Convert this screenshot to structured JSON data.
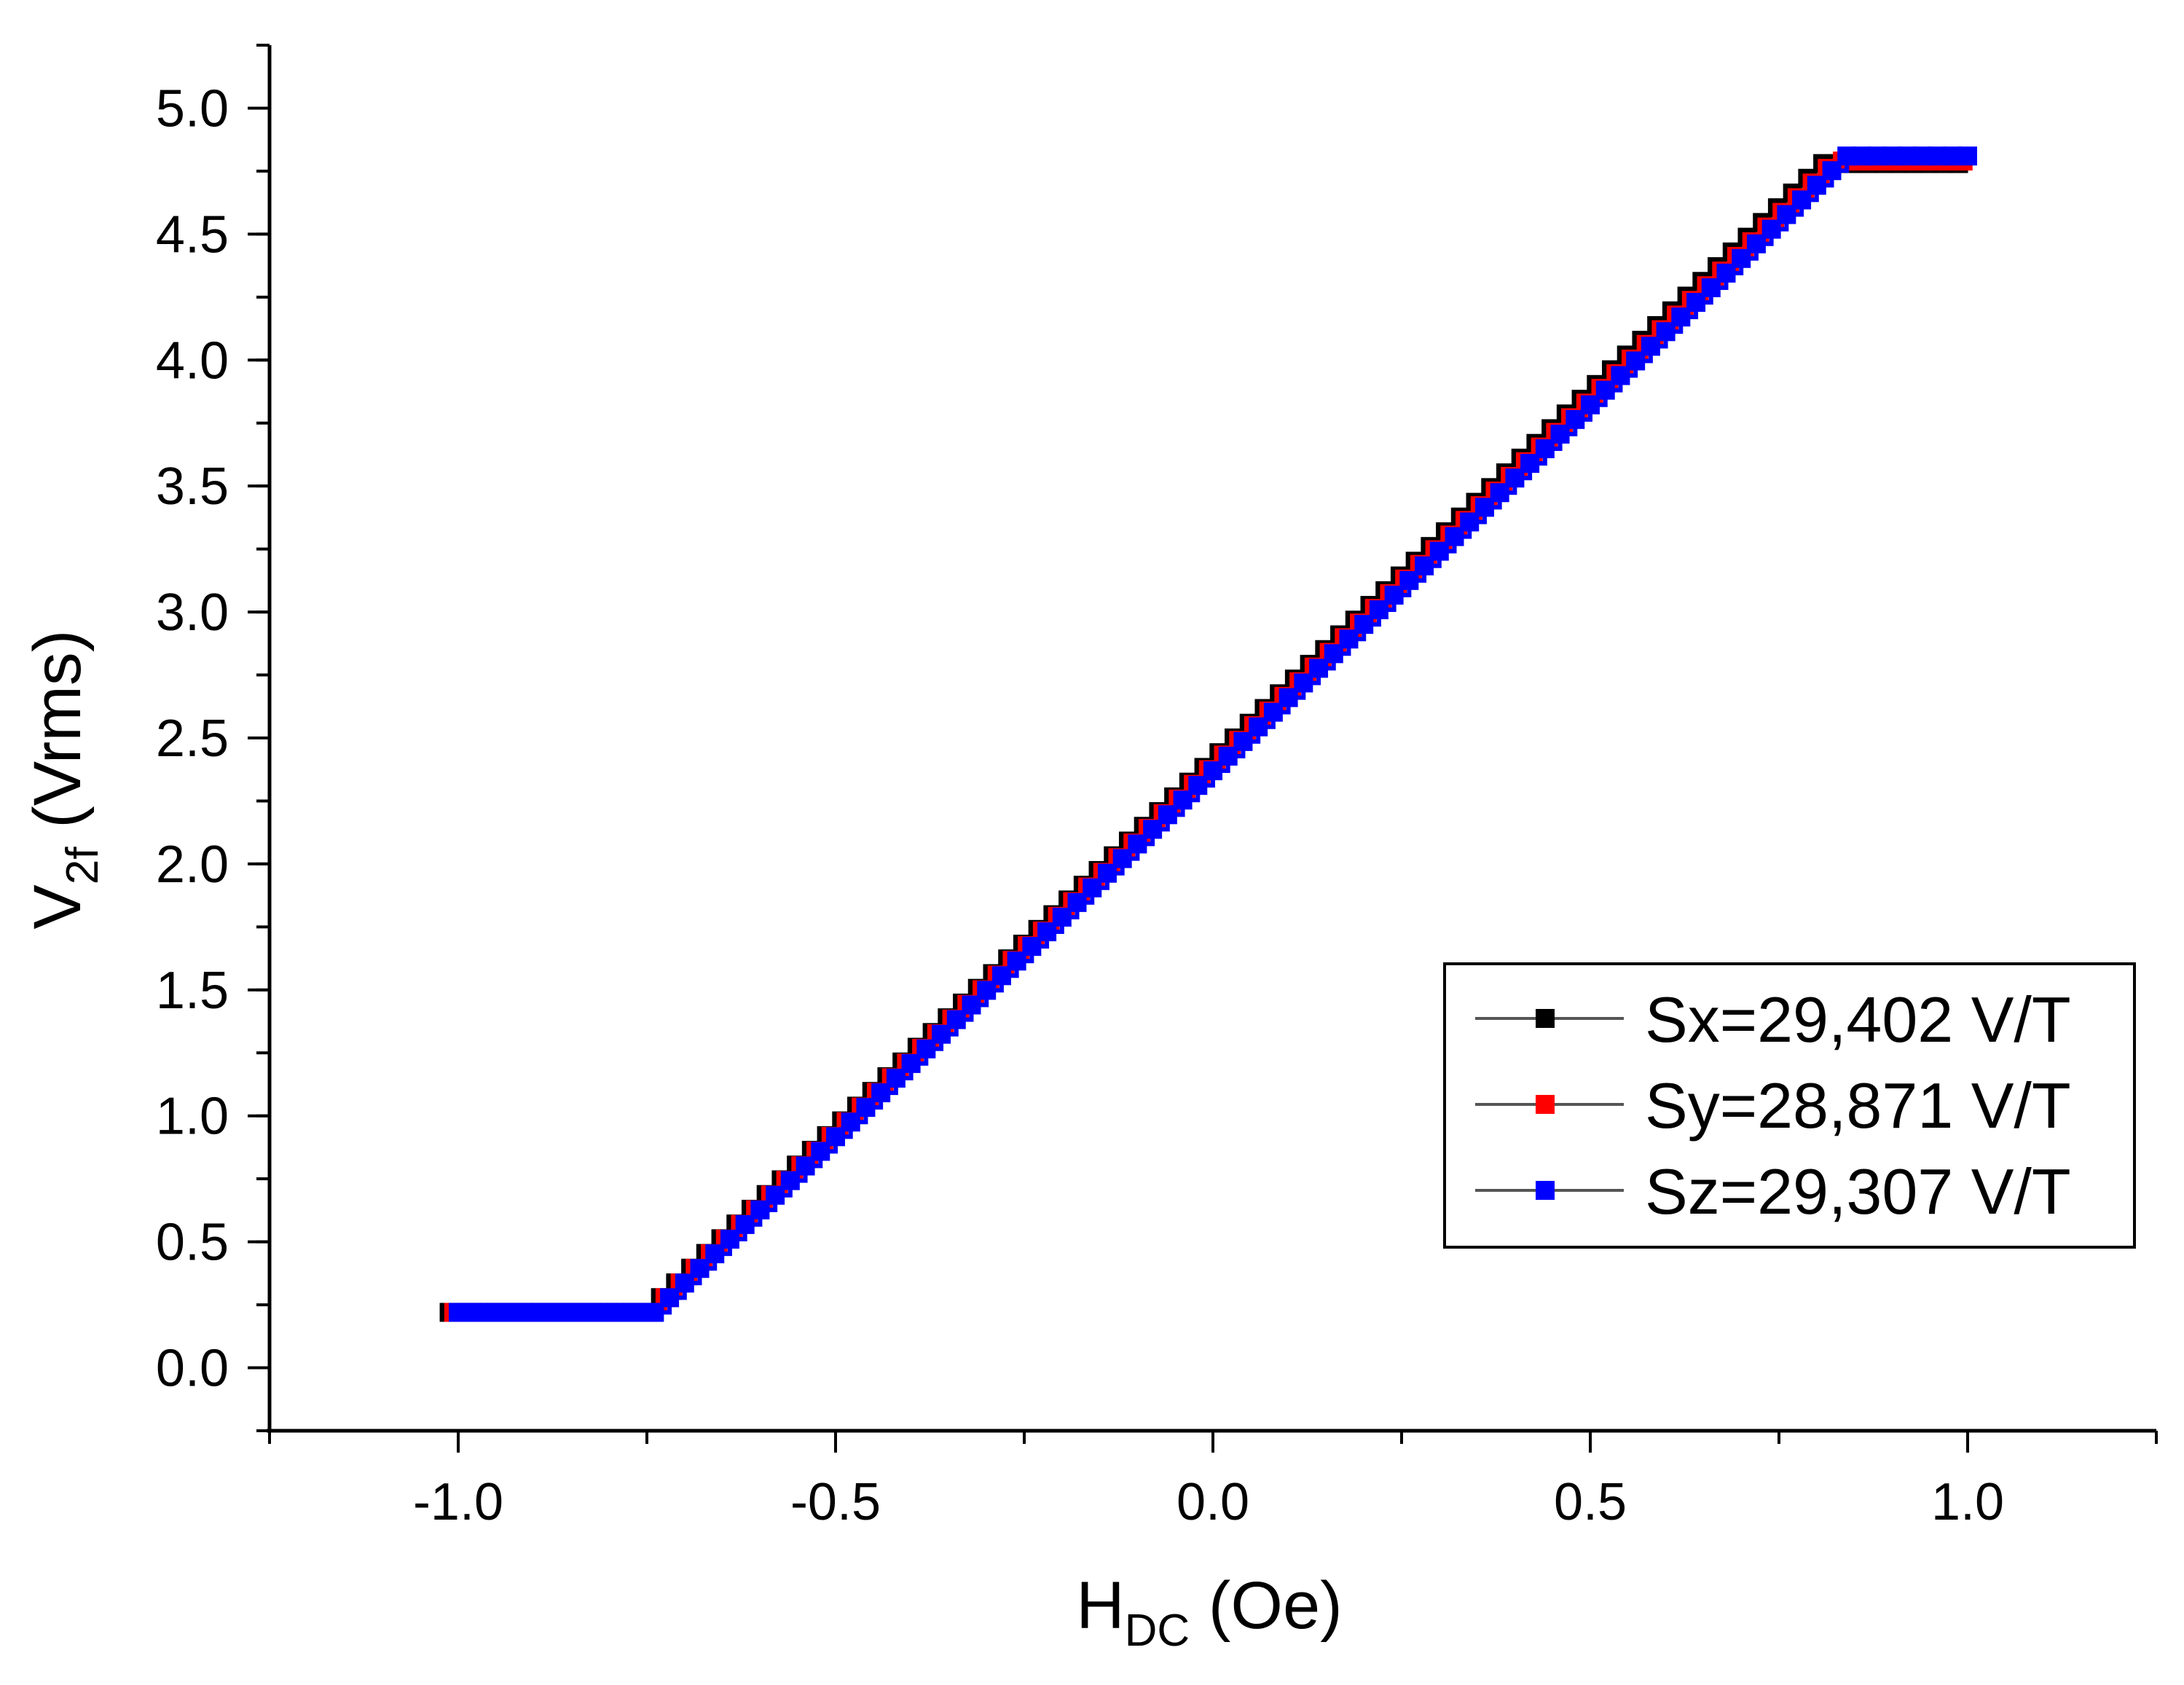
{
  "chart_data": {
    "type": "scatter",
    "xlabel": {
      "main": "H",
      "sub": "DC",
      "unit": " (Oe)"
    },
    "ylabel": {
      "main": "V",
      "sub": "2f",
      "unit": " (Vrms)"
    },
    "xlim": [
      -1.25,
      1.25
    ],
    "ylim": [
      -0.25,
      5.25
    ],
    "xticks": [
      -1.0,
      -0.5,
      0.0,
      0.5,
      1.0
    ],
    "xtick_labels": [
      "-1.0",
      "-0.5",
      "0.0",
      "0.5",
      "1.0"
    ],
    "yticks": [
      0.0,
      0.5,
      1.0,
      1.5,
      2.0,
      2.5,
      3.0,
      3.5,
      4.0,
      4.5,
      5.0
    ],
    "ytick_labels": [
      "0.0",
      "0.5",
      "1.0",
      "1.5",
      "2.0",
      "2.5",
      "3.0",
      "3.5",
      "4.0",
      "4.5",
      "5.0"
    ],
    "x_step": 0.02,
    "grid": false,
    "legend_position": "bottom-right",
    "series": [
      {
        "name": "Sx=29,402 V/T",
        "color": "#000000",
        "marker": "square",
        "offset_x": -0.012,
        "segments": [
          {
            "x": [
              -1.0,
              -0.74
            ],
            "y": [
              0.22,
              0.22
            ]
          },
          {
            "x": [
              -0.74,
              0.82
            ],
            "y": [
              0.22,
              4.78
            ]
          },
          {
            "x": [
              0.82,
              1.0
            ],
            "y": [
              4.78,
              4.78
            ]
          }
        ]
      },
      {
        "name": "Sy=28,871 V/T",
        "color": "#ff0000",
        "marker": "square",
        "offset_x": -0.006,
        "segments": [
          {
            "x": [
              -1.0,
              -0.74
            ],
            "y": [
              0.22,
              0.22
            ]
          },
          {
            "x": [
              -0.74,
              0.83
            ],
            "y": [
              0.22,
              4.79
            ]
          },
          {
            "x": [
              0.83,
              1.0
            ],
            "y": [
              4.79,
              4.79
            ]
          }
        ]
      },
      {
        "name": "Sz=29,307 V/T",
        "color": "#0000ff",
        "marker": "square",
        "offset_x": 0.0,
        "segments": [
          {
            "x": [
              -1.0,
              -0.74
            ],
            "y": [
              0.22,
              0.22
            ]
          },
          {
            "x": [
              -0.74,
              0.84
            ],
            "y": [
              0.22,
              4.81
            ]
          },
          {
            "x": [
              0.84,
              1.0
            ],
            "y": [
              4.81,
              4.81
            ]
          }
        ]
      }
    ]
  }
}
